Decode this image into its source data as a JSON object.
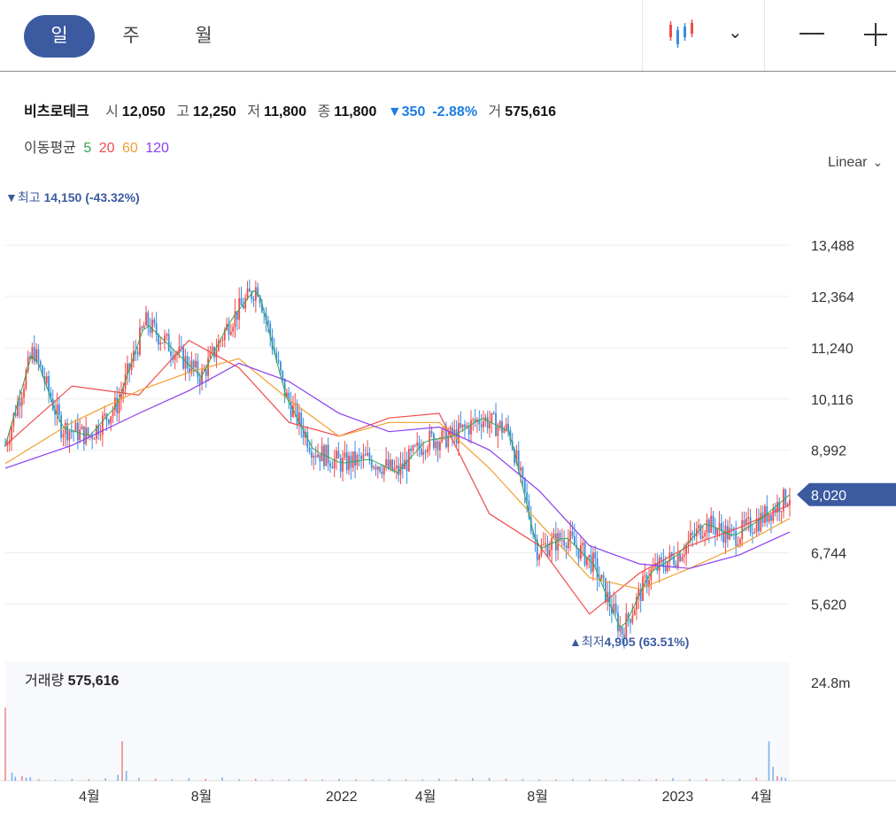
{
  "toolbar": {
    "tabs": [
      {
        "label": "일"
      },
      {
        "label": "주"
      },
      {
        "label": "월"
      }
    ],
    "active_tab": "일",
    "chart_style_icon": "candlestick-icon",
    "dropdown_icon": "chevron-down-icon",
    "zoom_out_icon": "minus-icon",
    "zoom_in_icon": "plus-icon"
  },
  "quote": {
    "name": "비츠로테크",
    "open_label": "시",
    "open": "12,050",
    "high_label": "고",
    "high": "12,250",
    "low_label": "저",
    "low": "11,800",
    "close_label": "종",
    "close": "11,800",
    "change": "▼350",
    "change_pct": "-2.88%",
    "volume_label": "거",
    "volume": "575,616"
  },
  "moving_average": {
    "label": "이동평균",
    "periods": [
      {
        "label": "5",
        "color": "#2fa84f"
      },
      {
        "label": "20",
        "color": "#f04b4b"
      },
      {
        "label": "60",
        "color": "#f0a030"
      },
      {
        "label": "120",
        "color": "#8a3ff0"
      }
    ]
  },
  "scale_selector": {
    "label": "Linear"
  },
  "colors": {
    "up": "#f04b4b",
    "down": "#3b8de0",
    "accent": "#3b5aa0",
    "ma5": "#2fa84f",
    "ma20": "#f04b4b",
    "ma60": "#f0a030",
    "ma120": "#8a3ff0"
  },
  "chart_data": {
    "type": "candlestick",
    "y_axis_ticks": [
      "13,488",
      "12,364",
      "11,240",
      "10,116",
      "8,992",
      "6,744",
      "5,620"
    ],
    "y_axis_tick_values": [
      13488,
      12364,
      11240,
      10116,
      8992,
      6744,
      5620
    ],
    "ylim": [
      4600,
      14400
    ],
    "x_axis_labels": [
      "4월",
      "8월",
      "2022",
      "4월",
      "8월",
      "2023",
      "4월"
    ],
    "x_axis_label_dates": [
      "2021-04",
      "2021-08",
      "2022-01",
      "2022-04",
      "2022-08",
      "2023-01",
      "2023-04"
    ],
    "period": [
      "2021-01",
      "2023-05"
    ],
    "current_price": "8,020",
    "current_price_value": 8020,
    "max_annotation": {
      "label": "최고",
      "value": "14,150",
      "pct": "(-43.32%)"
    },
    "min_annotation": {
      "label": "최저",
      "value": "4,905",
      "pct": "(63.51%)"
    },
    "close_path": [
      [
        "2021-01",
        9100
      ],
      [
        "2021-02",
        11200
      ],
      [
        "2021-03",
        9500
      ],
      [
        "2021-04",
        9300
      ],
      [
        "2021-05",
        10000
      ],
      [
        "2021-06",
        11800
      ],
      [
        "2021-07",
        11200
      ],
      [
        "2021-08",
        10600
      ],
      [
        "2021-09",
        11800
      ],
      [
        "2021-10",
        12600
      ],
      [
        "2021-11",
        10200
      ],
      [
        "2021-12",
        9000
      ],
      [
        "2022-01",
        8700
      ],
      [
        "2022-02",
        8800
      ],
      [
        "2022-03",
        8500
      ],
      [
        "2022-04",
        9200
      ],
      [
        "2022-05",
        9300
      ],
      [
        "2022-06",
        9700
      ],
      [
        "2022-07",
        9400
      ],
      [
        "2022-08",
        6800
      ],
      [
        "2022-09",
        7100
      ],
      [
        "2022-10",
        6500
      ],
      [
        "2022-11",
        5000
      ],
      [
        "2022-12",
        6300
      ],
      [
        "2023-01",
        6700
      ],
      [
        "2023-02",
        7400
      ],
      [
        "2023-03",
        7100
      ],
      [
        "2023-04",
        7500
      ],
      [
        "2023-05",
        8020
      ]
    ],
    "moving_averages": {
      "ma20": [
        [
          0,
          9100
        ],
        [
          8,
          10400
        ],
        [
          16,
          10200
        ],
        [
          22,
          11400
        ],
        [
          28,
          10800
        ],
        [
          34,
          9600
        ],
        [
          40,
          9300
        ],
        [
          46,
          9700
        ],
        [
          52,
          9800
        ],
        [
          58,
          7600
        ],
        [
          64,
          6900
        ],
        [
          70,
          5400
        ],
        [
          76,
          6300
        ],
        [
          82,
          6900
        ],
        [
          88,
          7300
        ],
        [
          94,
          7800
        ]
      ],
      "ma60": [
        [
          0,
          8700
        ],
        [
          8,
          9600
        ],
        [
          16,
          10300
        ],
        [
          22,
          10700
        ],
        [
          28,
          11000
        ],
        [
          34,
          10100
        ],
        [
          40,
          9300
        ],
        [
          46,
          9600
        ],
        [
          52,
          9600
        ],
        [
          58,
          8600
        ],
        [
          64,
          7400
        ],
        [
          70,
          6200
        ],
        [
          76,
          5950
        ],
        [
          82,
          6400
        ],
        [
          88,
          6900
        ],
        [
          94,
          7500
        ]
      ],
      "ma120": [
        [
          0,
          8600
        ],
        [
          8,
          9100
        ],
        [
          16,
          9800
        ],
        [
          22,
          10300
        ],
        [
          28,
          10900
        ],
        [
          34,
          10500
        ],
        [
          40,
          9800
        ],
        [
          46,
          9400
        ],
        [
          52,
          9500
        ],
        [
          58,
          9000
        ],
        [
          64,
          8100
        ],
        [
          70,
          6900
        ],
        [
          76,
          6500
        ],
        [
          82,
          6400
        ],
        [
          88,
          6700
        ],
        [
          94,
          7200
        ]
      ]
    },
    "volume": {
      "label": "거래량",
      "value": "575,616",
      "axis_tick": "24.8m",
      "axis_tick_value": 24800000,
      "ylim": [
        0,
        30000000
      ],
      "bars": [
        [
          0,
          18500000
        ],
        [
          0.8,
          2000000
        ],
        [
          1.2,
          1000000
        ],
        [
          2,
          1200000
        ],
        [
          2.5,
          800000
        ],
        [
          3,
          900000
        ],
        [
          4,
          400000
        ],
        [
          6,
          300000
        ],
        [
          8,
          500000
        ],
        [
          10,
          400000
        ],
        [
          12,
          600000
        ],
        [
          13.5,
          1500000
        ],
        [
          14,
          10000000
        ],
        [
          14.5,
          2500000
        ],
        [
          16,
          700000
        ],
        [
          18,
          500000
        ],
        [
          20,
          400000
        ],
        [
          22,
          600000
        ],
        [
          24,
          500000
        ],
        [
          26,
          800000
        ],
        [
          28,
          400000
        ],
        [
          30,
          500000
        ],
        [
          32,
          300000
        ],
        [
          34,
          400000
        ],
        [
          36,
          400000
        ],
        [
          38,
          300000
        ],
        [
          40,
          500000
        ],
        [
          42,
          350000
        ],
        [
          44,
          300000
        ],
        [
          46,
          400000
        ],
        [
          48,
          350000
        ],
        [
          50,
          300000
        ],
        [
          52,
          500000
        ],
        [
          54,
          400000
        ],
        [
          56,
          600000
        ],
        [
          58,
          700000
        ],
        [
          60,
          500000
        ],
        [
          62,
          400000
        ],
        [
          64,
          350000
        ],
        [
          66,
          300000
        ],
        [
          68,
          400000
        ],
        [
          70,
          350000
        ],
        [
          72,
          300000
        ],
        [
          74,
          400000
        ],
        [
          76,
          350000
        ],
        [
          78,
          500000
        ],
        [
          80,
          600000
        ],
        [
          82,
          400000
        ],
        [
          84,
          500000
        ],
        [
          86,
          400000
        ],
        [
          88,
          500000
        ],
        [
          90,
          800000
        ],
        [
          91.5,
          10000000
        ],
        [
          92,
          3500000
        ],
        [
          92.5,
          1200000
        ],
        [
          93,
          900000
        ],
        [
          93.5,
          700000
        ]
      ]
    }
  }
}
